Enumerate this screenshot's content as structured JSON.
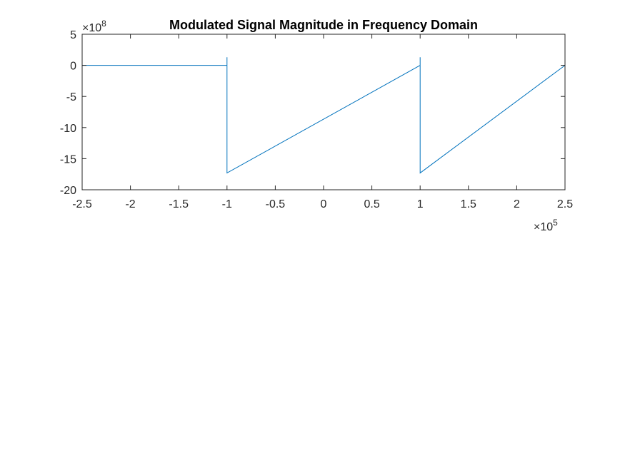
{
  "chart_data": {
    "type": "line",
    "title": "Modulated Signal Magnitude in Frequency Domain",
    "xlabel": "",
    "ylabel": "",
    "xlim": [
      -2.5,
      2.5
    ],
    "ylim": [
      -20,
      5
    ],
    "x_ticks": [
      -2.5,
      -2,
      -1.5,
      -1,
      -0.5,
      0,
      0.5,
      1,
      1.5,
      2,
      2.5
    ],
    "x_tick_labels": [
      "-2.5",
      "-2",
      "-1.5",
      "-1",
      "-0.5",
      "0",
      "0.5",
      "1",
      "1.5",
      "2",
      "2.5"
    ],
    "y_ticks": [
      5,
      0,
      -5,
      -10,
      -15,
      -20
    ],
    "y_tick_labels": [
      "5",
      "0",
      "-5",
      "-10",
      "-15",
      "-20"
    ],
    "x_exponent": {
      "base": "×10",
      "power": "5"
    },
    "y_exponent": {
      "base": "×10",
      "power": "8"
    },
    "grid": false,
    "line_color": "#0072BD",
    "series": [
      {
        "x": [
          -2.5,
          -1.0,
          -1.0,
          -1.0,
          1.0,
          1.0,
          1.0,
          2.5
        ],
        "y": [
          0,
          0,
          1.3,
          -17.3,
          0,
          1.3,
          -17.3,
          0
        ]
      }
    ]
  }
}
